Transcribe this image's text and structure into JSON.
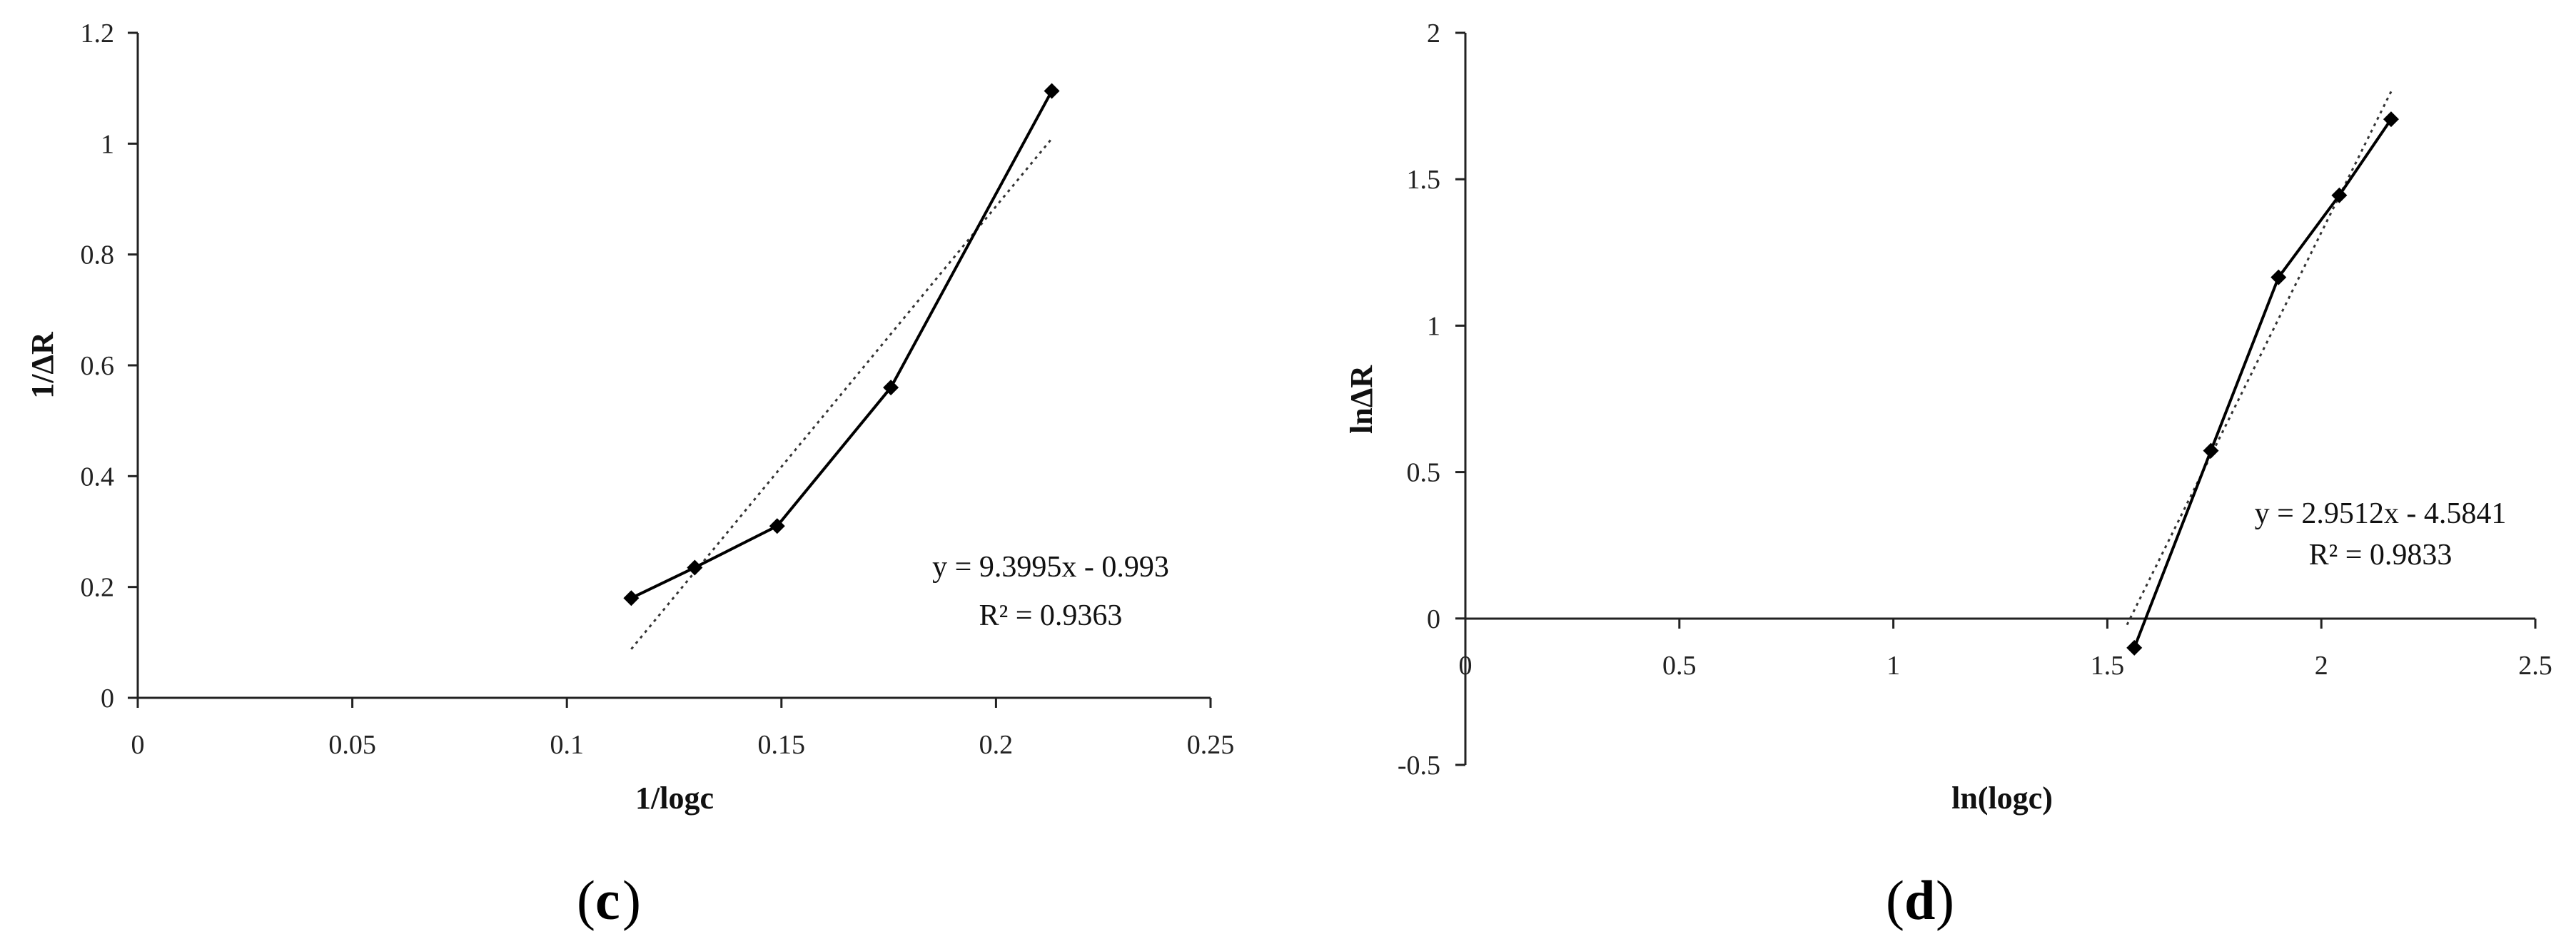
{
  "chart_data": [
    {
      "type": "scatter",
      "panel_label": "c",
      "xlabel": "1/logc",
      "ylabel": "1/ΔR",
      "xlim": [
        0,
        0.25
      ],
      "ylim": [
        0,
        1.2
      ],
      "x_ticks": [
        "0",
        "0.05",
        "0.1",
        "0.15",
        "0.2",
        "0.25"
      ],
      "y_ticks": [
        "0",
        "0.2",
        "0.4",
        "0.6",
        "0.8",
        "1",
        "1.2"
      ],
      "series": [
        {
          "x": [
            0.115,
            0.1298,
            0.149,
            0.1755,
            0.213
          ],
          "y": [
            0.18,
            0.235,
            0.31,
            0.56,
            1.095
          ],
          "marker": "diamond",
          "line": "solid"
        }
      ],
      "trendline": {
        "slope": 9.3995,
        "intercept": -0.993,
        "x_range": [
          0.115,
          0.213
        ],
        "style": "dotted"
      },
      "equation": "y = 9.3995x - 0.993",
      "r_squared": "R² = 0.9363"
    },
    {
      "type": "scatter",
      "panel_label": "d",
      "xlabel": "ln(logc)",
      "ylabel": "lnΔR",
      "xlim": [
        0,
        2.5
      ],
      "ylim": [
        -0.5,
        2
      ],
      "x_ticks": [
        "0",
        "0.5",
        "1",
        "1.5",
        "2",
        "2.5"
      ],
      "y_ticks": [
        "-0.5",
        "0",
        "0.5",
        "1",
        "1.5",
        "2"
      ],
      "series": [
        {
          "x": [
            1.563,
            1.742,
            1.9,
            2.042,
            2.163
          ],
          "y": [
            -0.1,
            0.573,
            1.165,
            1.445,
            1.705
          ],
          "marker": "diamond",
          "line": "solid"
        }
      ],
      "trendline": {
        "slope": 2.9512,
        "intercept": -4.5841,
        "x_range": [
          1.546,
          2.163
        ],
        "style": "dotted"
      },
      "equation": "y = 2.9512x - 4.5841",
      "r_squared": "R² = 0.9833"
    }
  ]
}
